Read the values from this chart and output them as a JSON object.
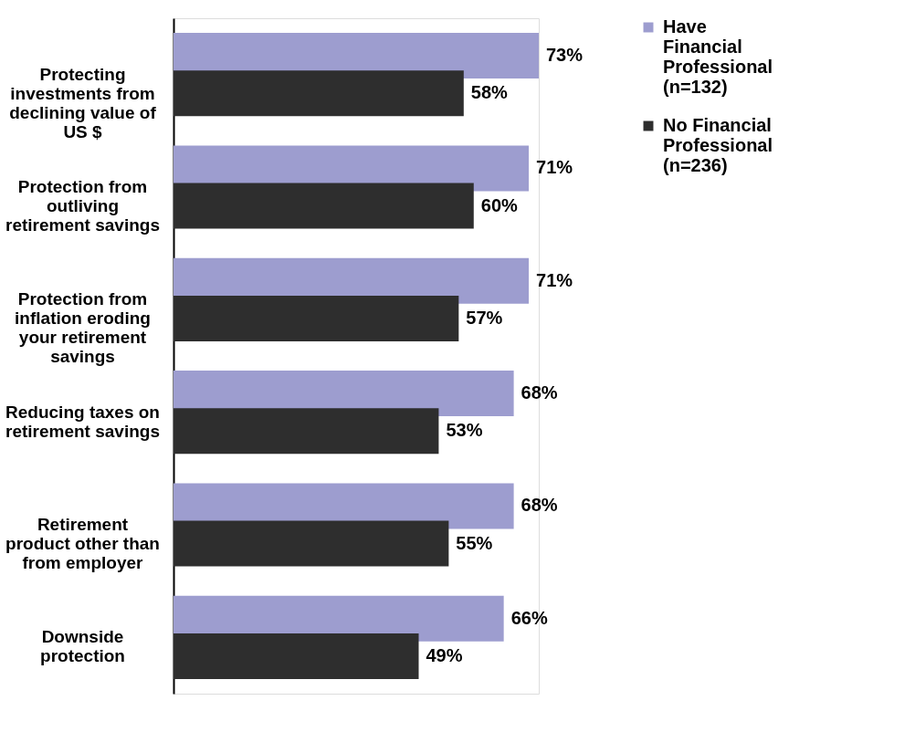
{
  "chart_data": {
    "type": "bar",
    "orientation": "horizontal",
    "categories": [
      "Protecting\ninvestments from\ndeclining value of\nUS $",
      "Protection from\noutliving\nretirement savings",
      "Protection from\ninflation eroding\nyour retirement\nsavings",
      "Reducing taxes on\nretirement savings",
      "Retirement\nproduct other than\nfrom employer",
      "Downside\nprotection"
    ],
    "series": [
      {
        "name": "Have\nFinancial\nProfessional\n(n=132)",
        "color": "#9d9dcf",
        "values": [
          73,
          71,
          71,
          68,
          68,
          66
        ],
        "value_labels": [
          "73%",
          "71%",
          "71%",
          "68%",
          "68%",
          "66%"
        ]
      },
      {
        "name": "No Financial\nProfessional\n(n=236)",
        "color": "#2e2e2e",
        "values": [
          58,
          60,
          57,
          53,
          55,
          49
        ],
        "value_labels": [
          "58%",
          "60%",
          "57%",
          "53%",
          "55%",
          "49%"
        ]
      }
    ],
    "tick_labels": "y",
    "legend": "right"
  }
}
